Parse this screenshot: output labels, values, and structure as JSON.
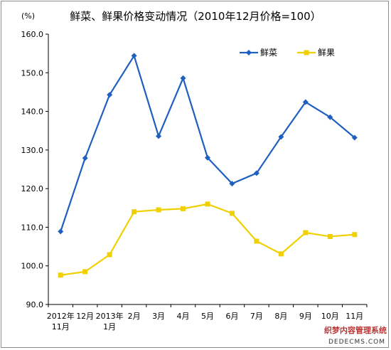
{
  "chart_data": {
    "type": "line",
    "title": "鲜菜、鲜果价格变动情况（2010年12月价格=100）",
    "unit": "(%)",
    "categories": [
      [
        "2012年",
        "11月"
      ],
      [
        "12月"
      ],
      [
        "2013年",
        "1月"
      ],
      [
        "2月"
      ],
      [
        "3月"
      ],
      [
        "4月"
      ],
      [
        "5月"
      ],
      [
        "6月"
      ],
      [
        "7月"
      ],
      [
        "8月"
      ],
      [
        "9月"
      ],
      [
        "10月"
      ],
      [
        "11月"
      ]
    ],
    "ylim": [
      90,
      160
    ],
    "yticks": [
      "90.0",
      "100.0",
      "110.0",
      "120.0",
      "130.0",
      "140.0",
      "150.0",
      "160.0"
    ],
    "grid": false,
    "legend": "top-right",
    "series": [
      {
        "name": "鲜菜",
        "color": "#1f5fbf",
        "marker": "diamond",
        "values": [
          108.9,
          127.9,
          144.3,
          154.4,
          133.6,
          148.6,
          128.0,
          121.3,
          124.0,
          133.4,
          142.4,
          138.5,
          133.2
        ]
      },
      {
        "name": "鲜果",
        "color": "#f0d000",
        "marker": "square",
        "values": [
          97.6,
          98.5,
          102.9,
          114.0,
          114.5,
          114.8,
          116.0,
          113.6,
          106.4,
          103.1,
          108.6,
          107.6,
          108.1
        ]
      }
    ]
  },
  "watermark": {
    "line1": "织梦内容管理系统",
    "line2": "DEDECMS.COM"
  }
}
